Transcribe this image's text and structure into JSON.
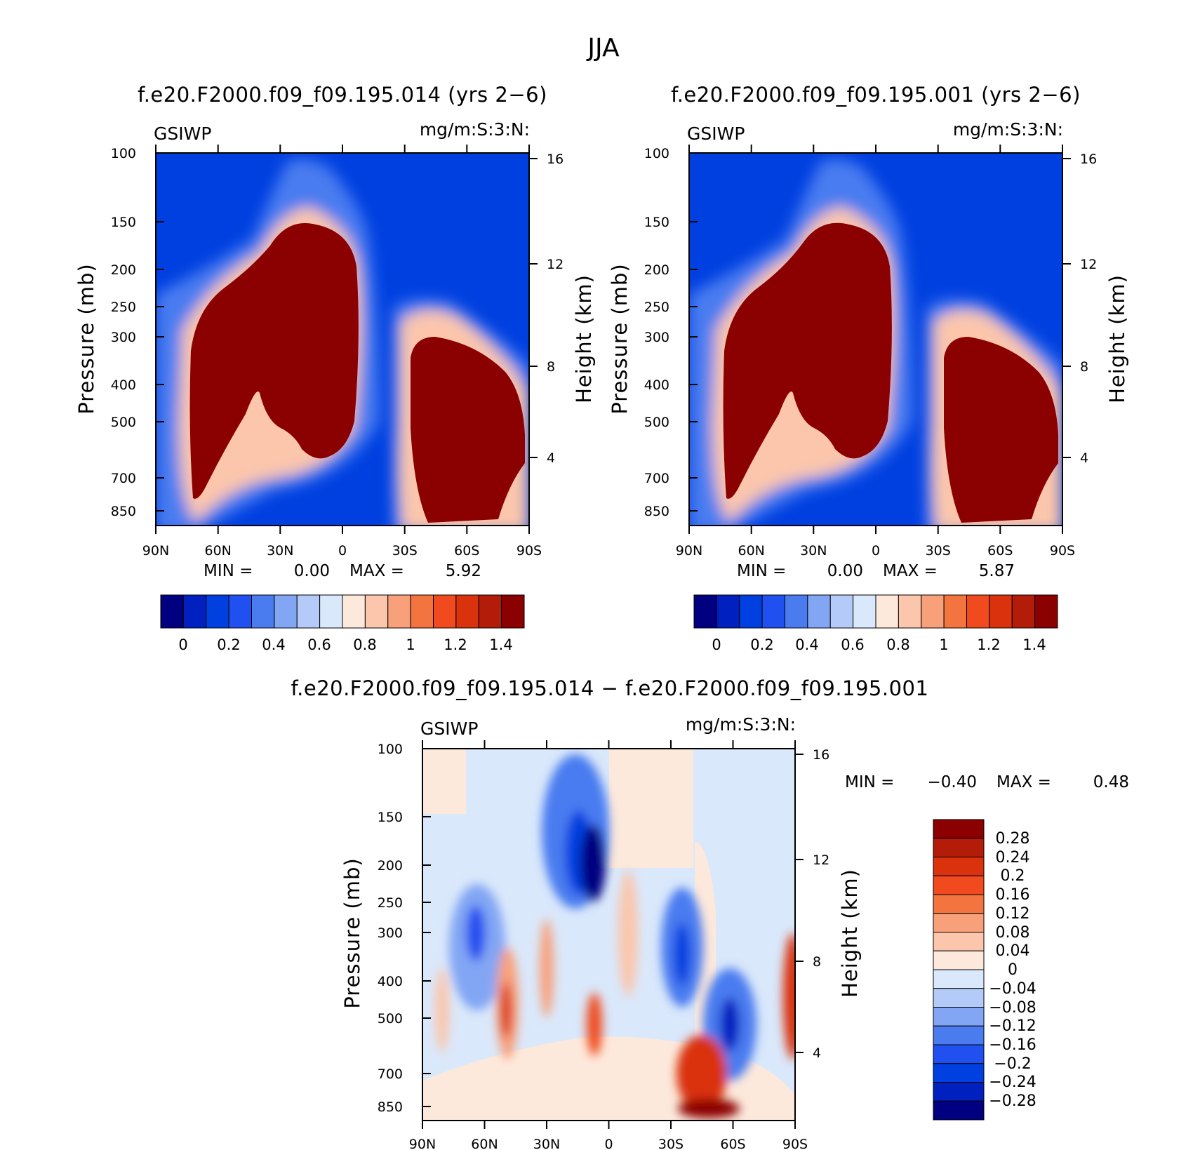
{
  "figure_title": "JJA",
  "colors": {
    "abs_colormap": [
      "#000080",
      "#0020c0",
      "#0040e0",
      "#2050f0",
      "#4a7cf0",
      "#82a6f4",
      "#b4caf8",
      "#dae8fb",
      "#fde9dc",
      "#fbc6ac",
      "#f8a07a",
      "#f4743f",
      "#f04a1e",
      "#d9320c",
      "#b31c08",
      "#8b0000"
    ],
    "diff_colormap": [
      "#000080",
      "#0020c0",
      "#0040e0",
      "#2050f0",
      "#4a7cf0",
      "#82a6f4",
      "#b4caf8",
      "#dae8fb",
      "#fde9dc",
      "#fbc6ac",
      "#f8a07a",
      "#f4743f",
      "#f04a1e",
      "#d9320c",
      "#b31c08",
      "#8b0000"
    ]
  },
  "chart_data": [
    {
      "type": "heatmap",
      "title": "f.e20.F2000.f09_f09.195.014 (yrs 2-6)",
      "variable": "GSIWP",
      "units": "mg/m:S:3:N:",
      "xlabel": "",
      "ylabel": "Pressure (mb)",
      "y2label": "Height (km)",
      "x_ticks": [
        "90N",
        "60N",
        "30N",
        "0",
        "30S",
        "60S",
        "90S"
      ],
      "y_ticks": [
        "100",
        "150",
        "200",
        "250",
        "300",
        "400",
        "500",
        "700",
        "850"
      ],
      "y2_ticks": [
        "16",
        "12",
        "8",
        "4"
      ],
      "x_range": [
        90,
        -90
      ],
      "y_range_mb": [
        100,
        1000
      ],
      "y_scale": "log",
      "min_label": "MIN =",
      "min_value": "0.00",
      "max_label": "MAX =",
      "max_value": "5.92",
      "colorbar_labels": [
        "0",
        "0.2",
        "0.4",
        "0.6",
        "0.8",
        "1",
        "1.2",
        "1.4"
      ]
    },
    {
      "type": "heatmap",
      "title": "f.e20.F2000.f09_f09.195.001 (yrs 2-6)",
      "variable": "GSIWP",
      "units": "mg/m:S:3:N:",
      "xlabel": "",
      "ylabel": "Pressure (mb)",
      "y2label": "Height (km)",
      "x_ticks": [
        "90N",
        "60N",
        "30N",
        "0",
        "30S",
        "60S",
        "90S"
      ],
      "y_ticks": [
        "100",
        "150",
        "200",
        "250",
        "300",
        "400",
        "500",
        "700",
        "850"
      ],
      "y2_ticks": [
        "16",
        "12",
        "8",
        "4"
      ],
      "x_range": [
        90,
        -90
      ],
      "y_range_mb": [
        100,
        1000
      ],
      "y_scale": "log",
      "min_label": "MIN =",
      "min_value": "0.00",
      "max_label": "MAX =",
      "max_value": "5.87",
      "colorbar_labels": [
        "0",
        "0.2",
        "0.4",
        "0.6",
        "0.8",
        "1",
        "1.2",
        "1.4"
      ]
    },
    {
      "type": "heatmap",
      "title": "f.e20.F2000.f09_f09.195.014 - f.e20.F2000.f09_f09.195.001",
      "variable": "GSIWP",
      "units": "mg/m:S:3:N:",
      "xlabel": "",
      "ylabel": "Pressure (mb)",
      "y2label": "Height (km)",
      "x_ticks": [
        "90N",
        "60N",
        "30N",
        "0",
        "30S",
        "60S",
        "90S"
      ],
      "y_ticks": [
        "100",
        "150",
        "200",
        "250",
        "300",
        "400",
        "500",
        "700",
        "850"
      ],
      "y2_ticks": [
        "16",
        "12",
        "8",
        "4"
      ],
      "x_range": [
        90,
        -90
      ],
      "y_range_mb": [
        100,
        1000
      ],
      "y_scale": "log",
      "min_label": "MIN =",
      "min_value": "-0.40",
      "max_label": "MAX =",
      "max_value": "0.48",
      "colorbar_labels": [
        "0.28",
        "0.24",
        "0.2",
        "0.16",
        "0.12",
        "0.08",
        "0.04",
        "0",
        "-0.04",
        "-0.08",
        "-0.12",
        "-0.16",
        "-0.2",
        "-0.24",
        "-0.28"
      ]
    }
  ]
}
